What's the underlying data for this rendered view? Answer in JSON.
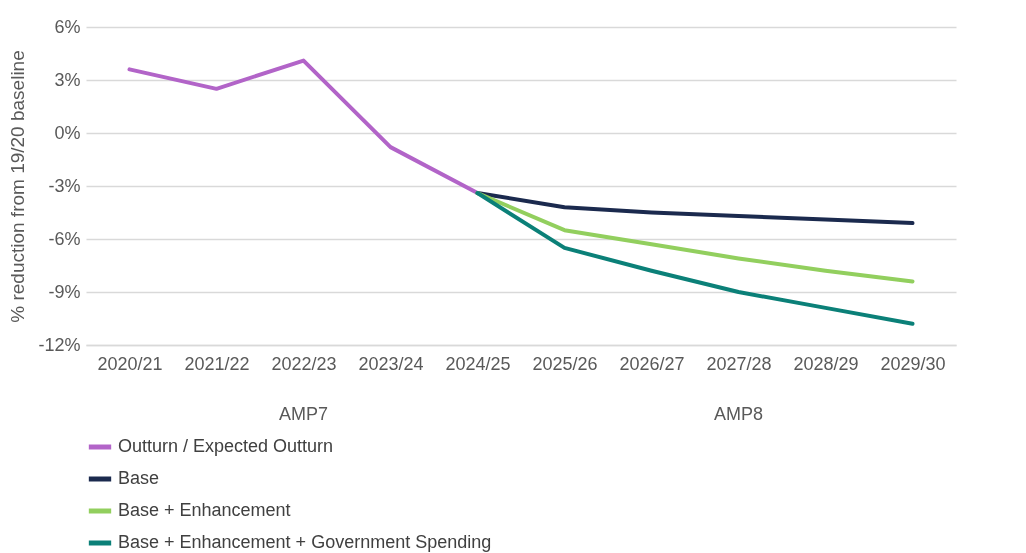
{
  "chart_data": {
    "type": "line",
    "ylabel": "% reduction from 19/20 baseline",
    "categories": [
      "2020/21",
      "2021/22",
      "2022/23",
      "2023/24",
      "2024/25",
      "2025/26",
      "2026/27",
      "2027/28",
      "2028/29",
      "2029/30"
    ],
    "series": [
      {
        "name": "Outturn / Expected Outturn",
        "color": "#b264c8",
        "values": [
          3.6,
          2.5,
          4.1,
          -0.8,
          -3.4,
          null,
          null,
          null,
          null,
          null
        ]
      },
      {
        "name": "Base",
        "color": "#1b2a4e",
        "values": [
          null,
          null,
          null,
          null,
          -3.4,
          -4.2,
          -4.5,
          -4.7,
          -4.9,
          -5.1
        ]
      },
      {
        "name": "Base + Enhancement",
        "color": "#92cf5e",
        "values": [
          null,
          null,
          null,
          null,
          -3.4,
          -5.5,
          -6.3,
          -7.1,
          -7.8,
          -8.4
        ]
      },
      {
        "name": "Base + Enhancement + Government Spending",
        "color": "#0b8078",
        "values": [
          null,
          null,
          null,
          null,
          -3.4,
          -6.5,
          -7.8,
          -9.0,
          -9.9,
          -10.8
        ]
      }
    ],
    "ylim": [
      -12,
      6
    ],
    "yticks": [
      {
        "value": -12,
        "label": "-12%"
      },
      {
        "value": -9,
        "label": "-9%"
      },
      {
        "value": -6,
        "label": "-6%"
      },
      {
        "value": -3,
        "label": "-3%"
      },
      {
        "value": 0,
        "label": "0%"
      },
      {
        "value": 3,
        "label": "3%"
      },
      {
        "value": 6,
        "label": "6%"
      }
    ],
    "grid": "y",
    "legend": "bottom",
    "marker": "none",
    "line_style": "solid",
    "annotations": [
      "AMP7",
      "AMP8"
    ]
  }
}
